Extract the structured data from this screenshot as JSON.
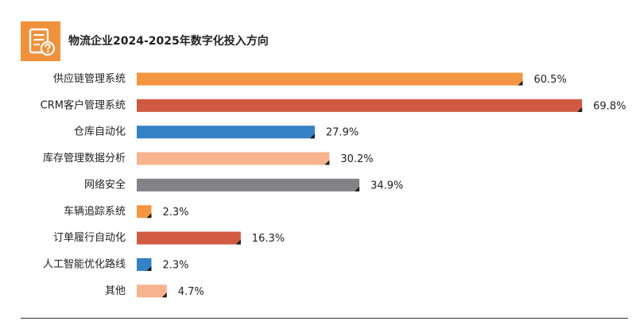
{
  "header": {
    "title": "物流企业2024-2025年数字化投入方向",
    "icon": "document-question-icon"
  },
  "chart_data": {
    "type": "bar",
    "orientation": "horizontal",
    "title": "物流企业2024-2025年数字化投入方向",
    "xlabel": "",
    "ylabel": "",
    "grid": false,
    "legend": "none",
    "unit": "%",
    "xlim": [
      0,
      70
    ],
    "categories": [
      "供应链管理系统",
      "CRM客户管理系统",
      "仓库自动化",
      "库存管理数据分析",
      "网络安全",
      "车辆追踪系统",
      "订单履行自动化",
      "人工智能优化路线",
      "其他"
    ],
    "values": [
      60.5,
      69.8,
      27.9,
      30.2,
      34.9,
      2.3,
      16.3,
      2.3,
      4.7
    ],
    "value_labels": [
      "60.5%",
      "69.8%",
      "27.9%",
      "30.2%",
      "34.9%",
      "2.3%",
      "16.3%",
      "2.3%",
      "4.7%"
    ],
    "colors": [
      "#f49641",
      "#d05a42",
      "#3581c5",
      "#f6b38d",
      "#838387",
      "#f49641",
      "#d05a42",
      "#3581c5",
      "#f6b38d"
    ]
  }
}
